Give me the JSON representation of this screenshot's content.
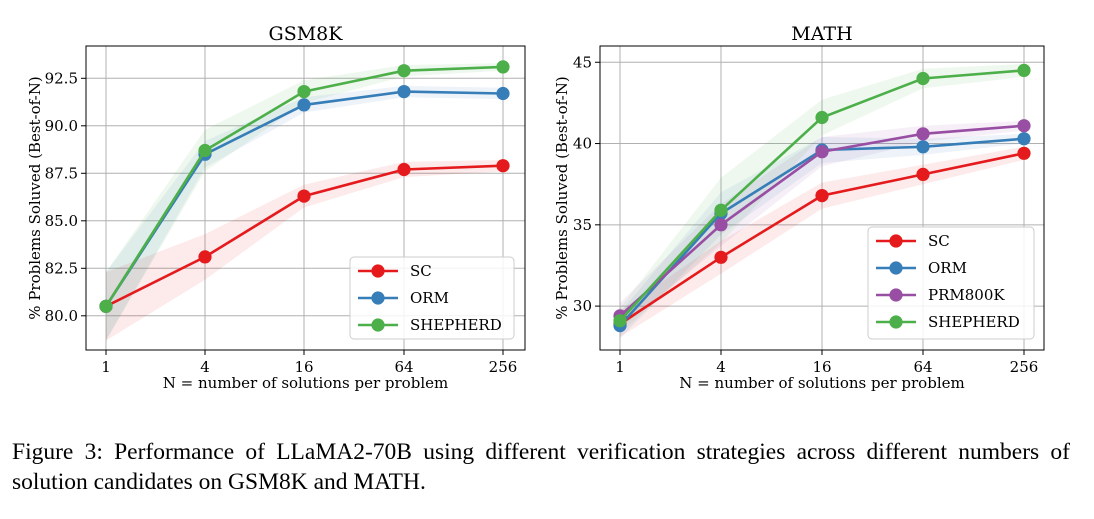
{
  "chart_data": [
    {
      "type": "line",
      "title": "GSM8K",
      "xlabel": "N = number of solutions per problem",
      "ylabel": "% Problems Soluved (Best-of-N)",
      "x": [
        "1",
        "4",
        "16",
        "64",
        "256"
      ],
      "ylim": [
        78.2,
        94.2
      ],
      "yticks": [
        "80.0",
        "82.5",
        "85.0",
        "87.5",
        "90.0",
        "92.5"
      ],
      "grid": true,
      "legend_position": "lower-right",
      "series": [
        {
          "name": "SC",
          "color": "#e41a1c",
          "values": [
            80.5,
            83.1,
            86.3,
            87.7,
            87.9
          ],
          "band": [
            1.8,
            1.2,
            0.6,
            0.4,
            0.3
          ]
        },
        {
          "name": "ORM",
          "color": "#377eb8",
          "values": [
            80.5,
            88.5,
            91.1,
            91.8,
            91.7
          ],
          "band": [
            1.8,
            0.7,
            0.4,
            0.3,
            0.3
          ]
        },
        {
          "name": "SHEPHERD",
          "color": "#4daf4a",
          "values": [
            80.5,
            88.7,
            91.8,
            92.9,
            93.1
          ],
          "band": [
            1.8,
            1.1,
            0.6,
            0.3,
            0.2
          ]
        }
      ]
    },
    {
      "type": "line",
      "title": "MATH",
      "xlabel": "N = number of solutions per problem",
      "ylabel": "% Problems Soluved (Best-of-N)",
      "x": [
        "1",
        "4",
        "16",
        "64",
        "256"
      ],
      "ylim": [
        27.3,
        46.0
      ],
      "yticks": [
        "30",
        "35",
        "40",
        "45"
      ],
      "grid": true,
      "legend_position": "lower-right",
      "series": [
        {
          "name": "SC",
          "color": "#e41a1c",
          "values": [
            28.9,
            33.0,
            36.8,
            38.1,
            39.4
          ],
          "band": [
            0.8,
            1.0,
            0.8,
            0.6,
            0.4
          ]
        },
        {
          "name": "ORM",
          "color": "#377eb8",
          "values": [
            28.8,
            35.7,
            39.6,
            39.8,
            40.3
          ],
          "band": [
            0.8,
            1.3,
            0.8,
            0.5,
            0.3
          ]
        },
        {
          "name": "PRM800K",
          "color": "#984ea3",
          "values": [
            29.4,
            35.0,
            39.5,
            40.6,
            41.1
          ],
          "band": [
            0.8,
            1.3,
            0.9,
            0.5,
            0.3
          ]
        },
        {
          "name": "SHEPHERD",
          "color": "#4daf4a",
          "values": [
            29.1,
            35.9,
            41.6,
            44.0,
            44.5
          ],
          "band": [
            0.8,
            2.0,
            1.1,
            0.6,
            0.4
          ]
        }
      ]
    }
  ],
  "caption": "Figure 3:  Performance of LLaMA2-70B using different verification strategies across different numbers of solution candidates on GSM8K and MATH."
}
